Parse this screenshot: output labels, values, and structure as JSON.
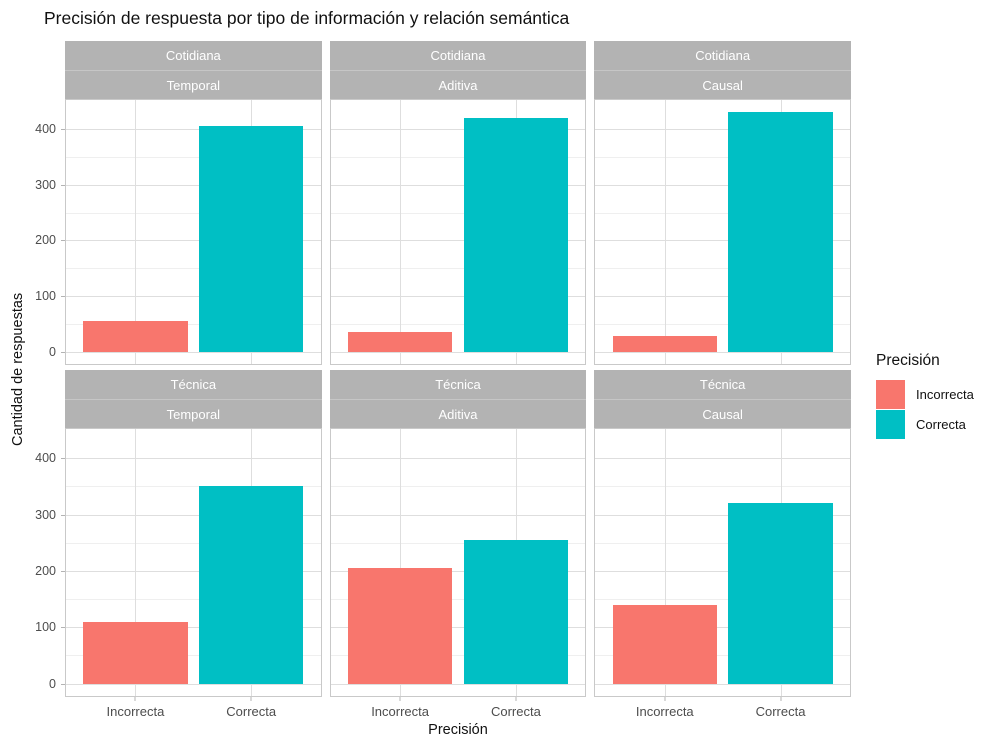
{
  "title": "Precisión de respuesta por tipo de información y relación semántica",
  "chart_data": {
    "type": "bar",
    "title": "Precisión de respuesta por tipo de información y relación semántica",
    "xlabel": "Precisión",
    "ylabel": "Cantidad de respuestas",
    "categories": [
      "Incorrecta",
      "Correcta"
    ],
    "y_ticks": [
      0,
      100,
      200,
      300,
      400
    ],
    "y_minor_ticks": [
      50,
      150,
      250,
      350
    ],
    "ylim": [
      -22,
      452
    ],
    "grid": true,
    "legend_position": "right",
    "facet_row_values": [
      "Cotidiana",
      "Técnica"
    ],
    "facet_col_values": [
      "Temporal",
      "Aditiva",
      "Causal"
    ],
    "legend": {
      "title": "Precisión",
      "entries": [
        {
          "label": "Incorrecta",
          "color": "#F8766D"
        },
        {
          "label": "Correcta",
          "color": "#00BFC4"
        }
      ]
    },
    "panels": [
      {
        "row": "Cotidiana",
        "col": "Temporal",
        "values": [
          55,
          405
        ]
      },
      {
        "row": "Cotidiana",
        "col": "Aditiva",
        "values": [
          35,
          420
        ]
      },
      {
        "row": "Cotidiana",
        "col": "Causal",
        "values": [
          28,
          430
        ]
      },
      {
        "row": "Técnica",
        "col": "Temporal",
        "values": [
          110,
          350
        ]
      },
      {
        "row": "Técnica",
        "col": "Aditiva",
        "values": [
          205,
          255
        ]
      },
      {
        "row": "Técnica",
        "col": "Causal",
        "values": [
          140,
          320
        ]
      }
    ]
  },
  "colors": {
    "strip_bg": "#B3B3B3",
    "strip_text": "#FFFFFF",
    "grid_major": "#DEDEDE",
    "grid_minor": "#EFEFEF",
    "panel_border": "#C9C9C9",
    "tick_text": "#4D4D4D",
    "axis_tick": "#B3B3B3"
  }
}
